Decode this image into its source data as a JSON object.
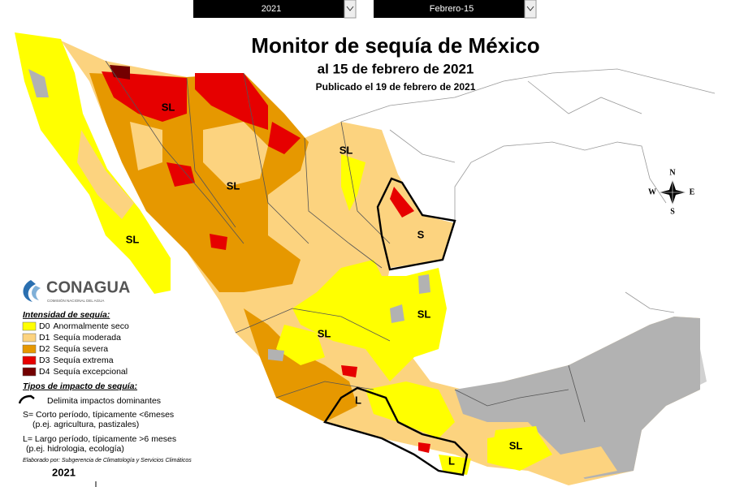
{
  "controls": {
    "year": "2021",
    "date": "Febrero-15"
  },
  "header": {
    "title": "Monitor de sequía de México",
    "subtitle": "al 15 de febrero de 2021",
    "published": "Publicado el 19 de febrero de 2021"
  },
  "compass": {
    "n": "N",
    "s": "S",
    "e": "E",
    "w": "W"
  },
  "map_labels": [
    "SL",
    "SL",
    "SL",
    "SL",
    "S",
    "SL",
    "SL",
    "L",
    "L",
    "SL"
  ],
  "logo": {
    "name": "CONAGUA",
    "subtitle": "COMISIÓN NACIONAL DEL AGUA"
  },
  "legend": {
    "title": "Intensidad de sequía:",
    "items": [
      {
        "code": "D0",
        "label": "Anormalmente seco",
        "color": "#ffff00"
      },
      {
        "code": "D1",
        "label": "Sequía moderada",
        "color": "#fcd37f"
      },
      {
        "code": "D2",
        "label": "Sequía severa",
        "color": "#e69800"
      },
      {
        "code": "D3",
        "label": "Sequía extrema",
        "color": "#e60000"
      },
      {
        "code": "D4",
        "label": "Sequía excepcional",
        "color": "#730000"
      }
    ]
  },
  "impact": {
    "title": "Tipos de impacto de sequía:",
    "line": "Delimita impactos dominantes",
    "short": "S= Corto período, típicamente <6meses",
    "short_example": "(p.ej. agricultura, pastizales)",
    "long": "L= Largo período, típicamente >6 meses",
    "long_example": "(p.ej. hidrologia, ecología)"
  },
  "credit": "Elaborado por: Subgerencia de Climatología y Servicios Climáticos",
  "footer_year": "2021"
}
